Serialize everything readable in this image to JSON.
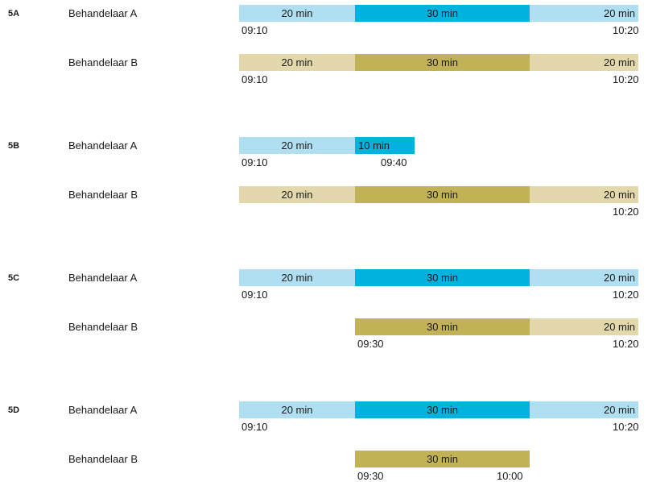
{
  "colors": {
    "a_light": "#afdff1",
    "a_dark": "#00b3df",
    "b_light": "#e2d8ac",
    "b_dark": "#c2b256"
  },
  "scenarios": [
    {
      "label": "5A",
      "rows": [
        {
          "therapist": "Behandelaar A",
          "segments": [
            {
              "label": "20 min",
              "tone": "a_light",
              "align": "center"
            },
            {
              "label": "30 min",
              "tone": "a_dark",
              "align": "center"
            },
            {
              "label": "20 min",
              "tone": "a_light",
              "align": "right"
            }
          ],
          "start_time": "09:10",
          "end_time": "10:20"
        },
        {
          "therapist": "Behandelaar B",
          "segments": [
            {
              "label": "20 min",
              "tone": "b_light",
              "align": "center"
            },
            {
              "label": "30 min",
              "tone": "b_dark",
              "align": "center"
            },
            {
              "label": "20 min",
              "tone": "b_light",
              "align": "right"
            }
          ],
          "start_time": "09:10",
          "end_time": "10:20"
        }
      ]
    },
    {
      "label": "5B",
      "rows": [
        {
          "therapist": "Behandelaar A",
          "segments": [
            {
              "label": "20 min",
              "tone": "a_light",
              "align": "center"
            },
            {
              "label": "10 min",
              "tone": "a_dark",
              "align": "left"
            }
          ],
          "start_time": "09:10",
          "end_time": "09:40"
        },
        {
          "therapist": "Behandelaar B",
          "segments": [
            {
              "label": "20 min",
              "tone": "b_light",
              "align": "center"
            },
            {
              "label": "30 min",
              "tone": "b_dark",
              "align": "center"
            },
            {
              "label": "20 min",
              "tone": "b_light",
              "align": "right"
            }
          ],
          "start_time": "",
          "end_time": "10:20"
        }
      ]
    },
    {
      "label": "5C",
      "rows": [
        {
          "therapist": "Behandelaar A",
          "segments": [
            {
              "label": "20 min",
              "tone": "a_light",
              "align": "center"
            },
            {
              "label": "30 min",
              "tone": "a_dark",
              "align": "center"
            },
            {
              "label": "20 min",
              "tone": "a_light",
              "align": "right"
            }
          ],
          "start_time": "09:10",
          "end_time": "10:20"
        },
        {
          "therapist": "Behandelaar B",
          "segments": [
            {
              "label": "30 min",
              "tone": "b_dark",
              "align": "center"
            },
            {
              "label": "20 min",
              "tone": "b_light",
              "align": "right"
            }
          ],
          "start_time": "09:30",
          "end_time": "10:20"
        }
      ]
    },
    {
      "label": "5D",
      "rows": [
        {
          "therapist": "Behandelaar A",
          "segments": [
            {
              "label": "20 min",
              "tone": "a_light",
              "align": "center"
            },
            {
              "label": "30 min",
              "tone": "a_dark",
              "align": "center"
            },
            {
              "label": "20 min",
              "tone": "a_light",
              "align": "right"
            }
          ],
          "start_time": "09:10",
          "end_time": "10:20"
        },
        {
          "therapist": "Behandelaar B",
          "segments": [
            {
              "label": "30 min",
              "tone": "b_dark",
              "align": "center"
            }
          ],
          "start_time": "09:30",
          "end_time": "10:00"
        }
      ]
    }
  ]
}
